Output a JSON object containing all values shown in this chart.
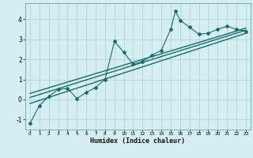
{
  "xlabel": "Humidex (Indice chaleur)",
  "bg_color": "#d4eef2",
  "grid_color": "#afd4da",
  "line_color": "#1a6b6b",
  "xlim": [
    -0.5,
    23.5
  ],
  "ylim": [
    -1.5,
    4.8
  ],
  "yticks": [
    -1,
    0,
    1,
    2,
    3,
    4
  ],
  "xticks": [
    0,
    1,
    2,
    3,
    4,
    5,
    6,
    7,
    8,
    9,
    10,
    11,
    12,
    13,
    14,
    15,
    16,
    17,
    18,
    19,
    20,
    21,
    22,
    23
  ],
  "data_line": [
    [
      0,
      -1.2
    ],
    [
      1,
      -0.3
    ],
    [
      2,
      0.15
    ],
    [
      3,
      0.5
    ],
    [
      4,
      0.55
    ],
    [
      5,
      0.05
    ],
    [
      6,
      0.35
    ],
    [
      7,
      0.6
    ],
    [
      8,
      1.0
    ],
    [
      9,
      2.9
    ],
    [
      10,
      2.35
    ],
    [
      11,
      1.75
    ],
    [
      12,
      1.9
    ],
    [
      13,
      2.2
    ],
    [
      14,
      2.45
    ],
    [
      15,
      3.5
    ],
    [
      15.5,
      4.4
    ],
    [
      16,
      3.95
    ],
    [
      17,
      3.6
    ],
    [
      18,
      3.25
    ],
    [
      19,
      3.3
    ],
    [
      20,
      3.5
    ],
    [
      21,
      3.65
    ],
    [
      22,
      3.5
    ],
    [
      23,
      3.4
    ]
  ],
  "reg_line1": [
    [
      0,
      -0.2
    ],
    [
      23,
      3.3
    ]
  ],
  "reg_line2": [
    [
      0,
      0.1
    ],
    [
      23,
      3.45
    ]
  ],
  "reg_line3": [
    [
      0,
      0.3
    ],
    [
      23,
      3.55
    ]
  ]
}
